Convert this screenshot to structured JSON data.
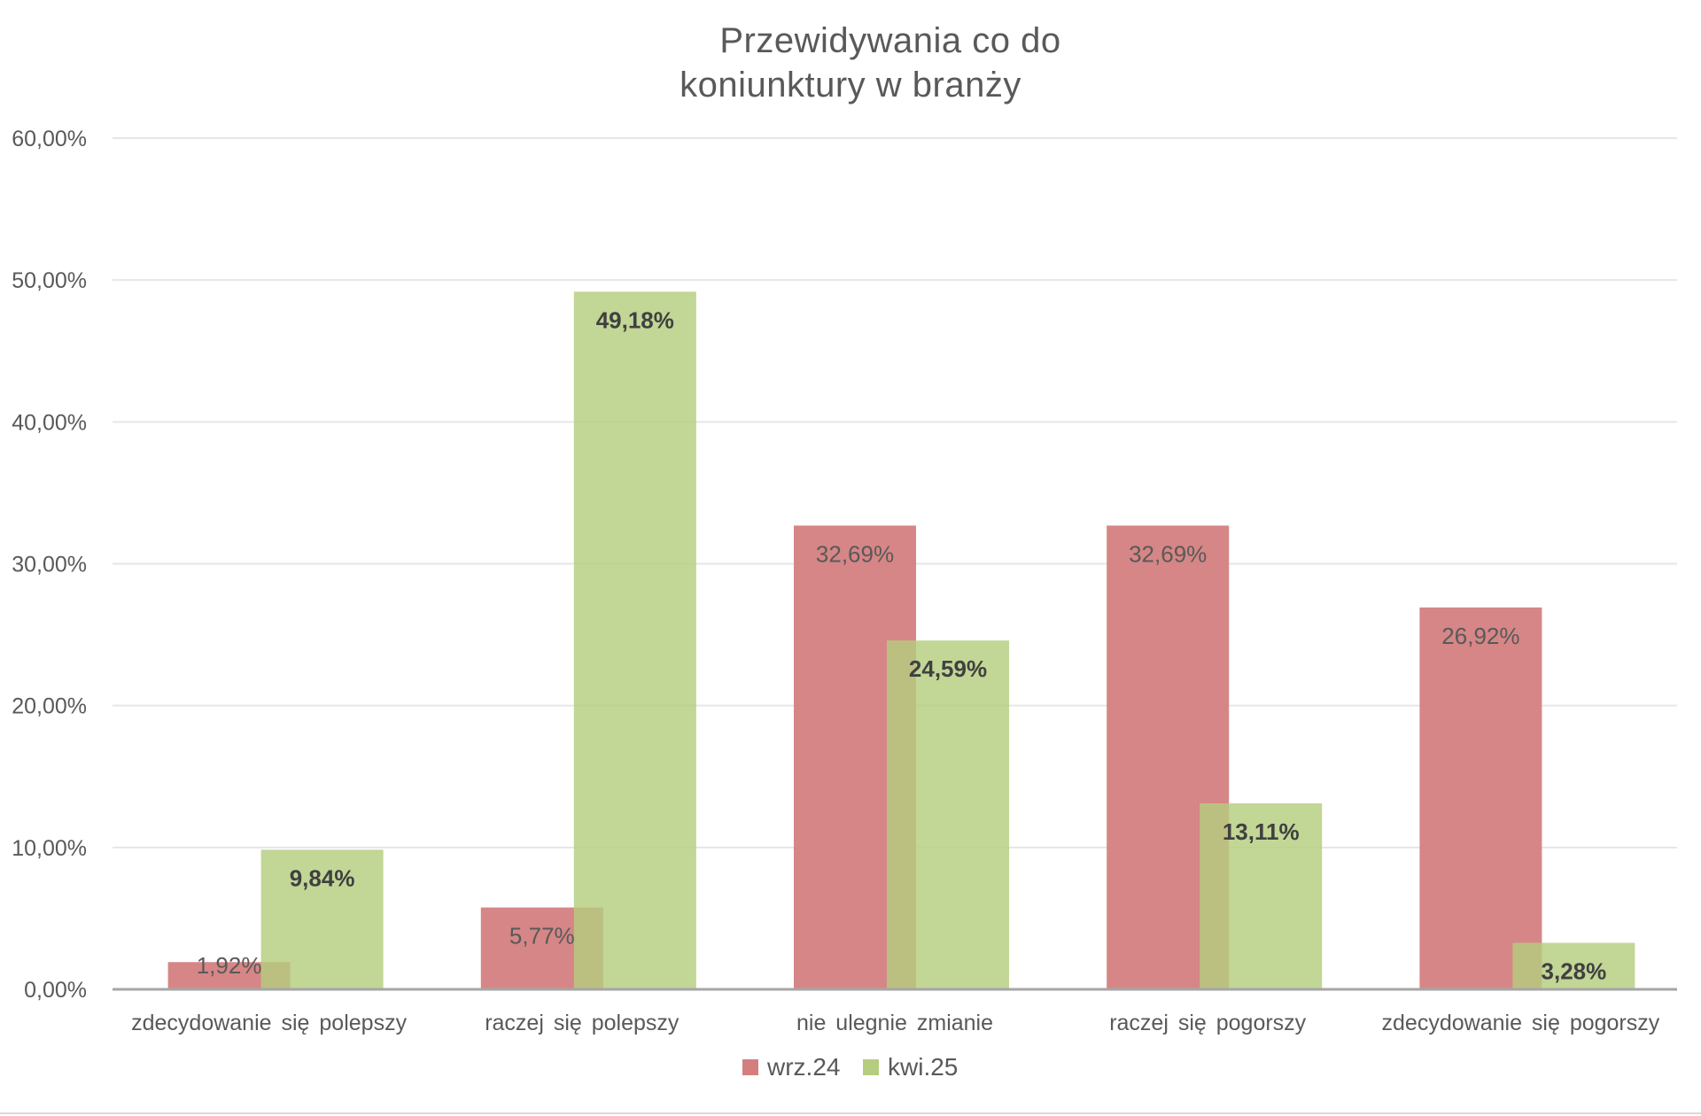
{
  "chart_data": {
    "type": "bar",
    "title": "Przewidywania co do koniunktury w branży",
    "title_lines": [
      "Przewidywania co do",
      "koniunktury w branży"
    ],
    "xlabel": "",
    "ylabel": "",
    "ylim": [
      0,
      60
    ],
    "yticks": [
      0,
      10,
      20,
      30,
      40,
      50,
      60
    ],
    "ytick_labels": [
      "0,00%",
      "10,00%",
      "20,00%",
      "30,00%",
      "40,00%",
      "50,00%",
      "60,00%"
    ],
    "grid": true,
    "legend_position": "bottom",
    "categories": [
      "zdecydowanie się polepszy",
      "raczej się polepszy",
      "nie ulegnie zmianie",
      "raczej się pogorszy",
      "zdecydowanie się pogorszy"
    ],
    "series": [
      {
        "name": "wrz.24",
        "color": "#d47f7f",
        "values": [
          1.92,
          5.77,
          32.69,
          32.69,
          26.92
        ],
        "labels": [
          "1,92%",
          "5,77%",
          "32,69%",
          "32,69%",
          "26,92%"
        ]
      },
      {
        "name": "kwi.25",
        "color": "#b5cd7f",
        "values": [
          9.84,
          49.18,
          24.59,
          13.11,
          3.28
        ],
        "labels": [
          "9,84%",
          "49,18%",
          "24,59%",
          "13,11%",
          "3,28%"
        ]
      }
    ]
  }
}
